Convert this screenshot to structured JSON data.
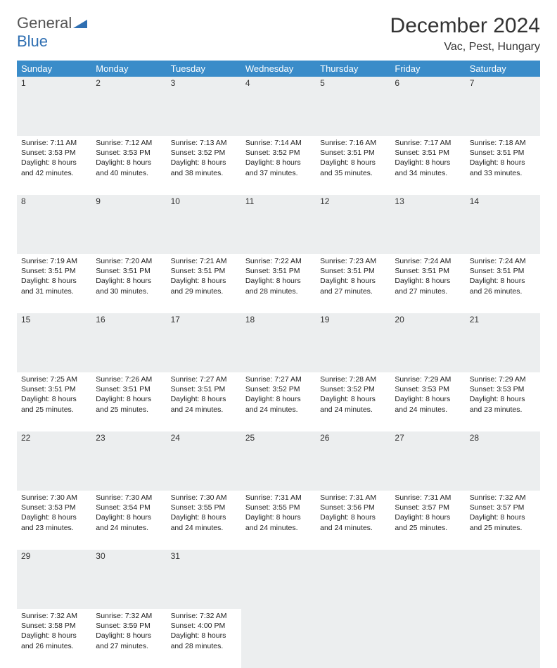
{
  "logo": {
    "text1": "General",
    "text2": "Blue"
  },
  "title": "December 2024",
  "location": "Vac, Pest, Hungary",
  "colors": {
    "header_bg": "#3a8cc9",
    "header_fg": "#ffffff",
    "daynum_bg": "#eceeef",
    "daynum_border_top": "#2f6fb2",
    "logo_blue": "#2f6fb2"
  },
  "weekdays": [
    "Sunday",
    "Monday",
    "Tuesday",
    "Wednesday",
    "Thursday",
    "Friday",
    "Saturday"
  ],
  "weeks": [
    [
      {
        "n": "1",
        "sr": "Sunrise: 7:11 AM",
        "ss": "Sunset: 3:53 PM",
        "d1": "Daylight: 8 hours",
        "d2": "and 42 minutes."
      },
      {
        "n": "2",
        "sr": "Sunrise: 7:12 AM",
        "ss": "Sunset: 3:53 PM",
        "d1": "Daylight: 8 hours",
        "d2": "and 40 minutes."
      },
      {
        "n": "3",
        "sr": "Sunrise: 7:13 AM",
        "ss": "Sunset: 3:52 PM",
        "d1": "Daylight: 8 hours",
        "d2": "and 38 minutes."
      },
      {
        "n": "4",
        "sr": "Sunrise: 7:14 AM",
        "ss": "Sunset: 3:52 PM",
        "d1": "Daylight: 8 hours",
        "d2": "and 37 minutes."
      },
      {
        "n": "5",
        "sr": "Sunrise: 7:16 AM",
        "ss": "Sunset: 3:51 PM",
        "d1": "Daylight: 8 hours",
        "d2": "and 35 minutes."
      },
      {
        "n": "6",
        "sr": "Sunrise: 7:17 AM",
        "ss": "Sunset: 3:51 PM",
        "d1": "Daylight: 8 hours",
        "d2": "and 34 minutes."
      },
      {
        "n": "7",
        "sr": "Sunrise: 7:18 AM",
        "ss": "Sunset: 3:51 PM",
        "d1": "Daylight: 8 hours",
        "d2": "and 33 minutes."
      }
    ],
    [
      {
        "n": "8",
        "sr": "Sunrise: 7:19 AM",
        "ss": "Sunset: 3:51 PM",
        "d1": "Daylight: 8 hours",
        "d2": "and 31 minutes."
      },
      {
        "n": "9",
        "sr": "Sunrise: 7:20 AM",
        "ss": "Sunset: 3:51 PM",
        "d1": "Daylight: 8 hours",
        "d2": "and 30 minutes."
      },
      {
        "n": "10",
        "sr": "Sunrise: 7:21 AM",
        "ss": "Sunset: 3:51 PM",
        "d1": "Daylight: 8 hours",
        "d2": "and 29 minutes."
      },
      {
        "n": "11",
        "sr": "Sunrise: 7:22 AM",
        "ss": "Sunset: 3:51 PM",
        "d1": "Daylight: 8 hours",
        "d2": "and 28 minutes."
      },
      {
        "n": "12",
        "sr": "Sunrise: 7:23 AM",
        "ss": "Sunset: 3:51 PM",
        "d1": "Daylight: 8 hours",
        "d2": "and 27 minutes."
      },
      {
        "n": "13",
        "sr": "Sunrise: 7:24 AM",
        "ss": "Sunset: 3:51 PM",
        "d1": "Daylight: 8 hours",
        "d2": "and 27 minutes."
      },
      {
        "n": "14",
        "sr": "Sunrise: 7:24 AM",
        "ss": "Sunset: 3:51 PM",
        "d1": "Daylight: 8 hours",
        "d2": "and 26 minutes."
      }
    ],
    [
      {
        "n": "15",
        "sr": "Sunrise: 7:25 AM",
        "ss": "Sunset: 3:51 PM",
        "d1": "Daylight: 8 hours",
        "d2": "and 25 minutes."
      },
      {
        "n": "16",
        "sr": "Sunrise: 7:26 AM",
        "ss": "Sunset: 3:51 PM",
        "d1": "Daylight: 8 hours",
        "d2": "and 25 minutes."
      },
      {
        "n": "17",
        "sr": "Sunrise: 7:27 AM",
        "ss": "Sunset: 3:51 PM",
        "d1": "Daylight: 8 hours",
        "d2": "and 24 minutes."
      },
      {
        "n": "18",
        "sr": "Sunrise: 7:27 AM",
        "ss": "Sunset: 3:52 PM",
        "d1": "Daylight: 8 hours",
        "d2": "and 24 minutes."
      },
      {
        "n": "19",
        "sr": "Sunrise: 7:28 AM",
        "ss": "Sunset: 3:52 PM",
        "d1": "Daylight: 8 hours",
        "d2": "and 24 minutes."
      },
      {
        "n": "20",
        "sr": "Sunrise: 7:29 AM",
        "ss": "Sunset: 3:53 PM",
        "d1": "Daylight: 8 hours",
        "d2": "and 24 minutes."
      },
      {
        "n": "21",
        "sr": "Sunrise: 7:29 AM",
        "ss": "Sunset: 3:53 PM",
        "d1": "Daylight: 8 hours",
        "d2": "and 23 minutes."
      }
    ],
    [
      {
        "n": "22",
        "sr": "Sunrise: 7:30 AM",
        "ss": "Sunset: 3:53 PM",
        "d1": "Daylight: 8 hours",
        "d2": "and 23 minutes."
      },
      {
        "n": "23",
        "sr": "Sunrise: 7:30 AM",
        "ss": "Sunset: 3:54 PM",
        "d1": "Daylight: 8 hours",
        "d2": "and 24 minutes."
      },
      {
        "n": "24",
        "sr": "Sunrise: 7:30 AM",
        "ss": "Sunset: 3:55 PM",
        "d1": "Daylight: 8 hours",
        "d2": "and 24 minutes."
      },
      {
        "n": "25",
        "sr": "Sunrise: 7:31 AM",
        "ss": "Sunset: 3:55 PM",
        "d1": "Daylight: 8 hours",
        "d2": "and 24 minutes."
      },
      {
        "n": "26",
        "sr": "Sunrise: 7:31 AM",
        "ss": "Sunset: 3:56 PM",
        "d1": "Daylight: 8 hours",
        "d2": "and 24 minutes."
      },
      {
        "n": "27",
        "sr": "Sunrise: 7:31 AM",
        "ss": "Sunset: 3:57 PM",
        "d1": "Daylight: 8 hours",
        "d2": "and 25 minutes."
      },
      {
        "n": "28",
        "sr": "Sunrise: 7:32 AM",
        "ss": "Sunset: 3:57 PM",
        "d1": "Daylight: 8 hours",
        "d2": "and 25 minutes."
      }
    ],
    [
      {
        "n": "29",
        "sr": "Sunrise: 7:32 AM",
        "ss": "Sunset: 3:58 PM",
        "d1": "Daylight: 8 hours",
        "d2": "and 26 minutes."
      },
      {
        "n": "30",
        "sr": "Sunrise: 7:32 AM",
        "ss": "Sunset: 3:59 PM",
        "d1": "Daylight: 8 hours",
        "d2": "and 27 minutes."
      },
      {
        "n": "31",
        "sr": "Sunrise: 7:32 AM",
        "ss": "Sunset: 4:00 PM",
        "d1": "Daylight: 8 hours",
        "d2": "and 28 minutes."
      },
      null,
      null,
      null,
      null
    ]
  ]
}
